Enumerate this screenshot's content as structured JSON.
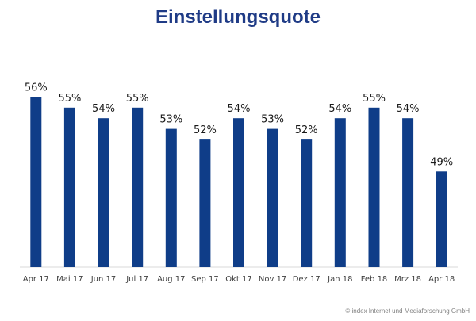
{
  "chart_data": {
    "type": "bar",
    "title": "Einstellungsquote",
    "xlabel": "",
    "ylabel": "",
    "categories": [
      "Apr 17",
      "Mai 17",
      "Jun 17",
      "Jul 17",
      "Aug 17",
      "Sep 17",
      "Okt 17",
      "Nov 17",
      "Dez 17",
      "Jan 18",
      "Feb 18",
      "Mrz 18",
      "Apr 18"
    ],
    "values": [
      56,
      55,
      54,
      55,
      53,
      52,
      54,
      53,
      52,
      54,
      55,
      54,
      49
    ],
    "value_labels": [
      "56%",
      "55%",
      "54%",
      "55%",
      "53%",
      "52%",
      "54%",
      "53%",
      "52%",
      "54%",
      "55%",
      "54%",
      "49%"
    ],
    "unit": "%",
    "ylim": [
      40,
      57
    ],
    "grid": false,
    "legend": "none",
    "bar_color": "#0f3d88"
  },
  "title_color": "#1f3b86",
  "copyright": "© index Internet und Mediaforschung GmbH"
}
